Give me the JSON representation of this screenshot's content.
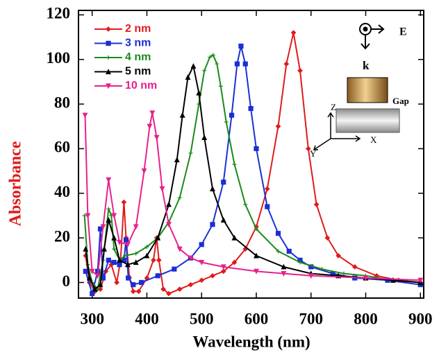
{
  "chart_data": {
    "type": "line",
    "x_label": "Wavelength (nm)",
    "y_label": "Absorbance",
    "xlim": [
      275,
      906
    ],
    "ylim": [
      -7,
      122
    ],
    "xticks": [
      300,
      400,
      500,
      600,
      700,
      800,
      900
    ],
    "yticks": [
      0,
      20,
      40,
      60,
      80,
      100,
      120
    ],
    "legend": "upper-left",
    "series": [
      {
        "name": "2 nm",
        "color": "#e01b1b",
        "marker": "diamond",
        "x": [
          288,
          295,
          305,
          315,
          325,
          335,
          345,
          352,
          358,
          362,
          368,
          375,
          385,
          400,
          412,
          418,
          422,
          430,
          440,
          460,
          480,
          500,
          520,
          540,
          560,
          580,
          600,
          620,
          640,
          655,
          668,
          680,
          695,
          710,
          730,
          750,
          780,
          820,
          860,
          900
        ],
        "values": [
          12,
          0,
          -4,
          -3,
          5,
          8,
          0,
          10,
          36,
          20,
          2,
          -4,
          -4,
          2,
          10,
          20,
          10,
          -3,
          -5,
          -3,
          -1,
          1,
          3,
          5,
          9,
          15,
          25,
          42,
          70,
          98,
          112,
          95,
          60,
          35,
          20,
          12,
          7,
          3,
          1,
          0
        ]
      },
      {
        "name": "3 nm",
        "color": "#1a2fd6",
        "marker": "square",
        "x": [
          288,
          300,
          310,
          315,
          320,
          330,
          340,
          350,
          358,
          362,
          366,
          375,
          390,
          420,
          450,
          480,
          500,
          520,
          540,
          555,
          565,
          572,
          580,
          590,
          600,
          620,
          640,
          660,
          680,
          700,
          740,
          780,
          840,
          900
        ],
        "values": [
          5,
          -5,
          5,
          24,
          2,
          10,
          9,
          8,
          10,
          19,
          2,
          -1,
          0,
          3,
          6,
          11,
          17,
          26,
          45,
          75,
          98,
          106,
          98,
          78,
          60,
          34,
          22,
          14,
          10,
          7,
          4,
          2,
          1,
          -1
        ]
      },
      {
        "name": "4 nm",
        "color": "#1a8a1a",
        "marker": "plus",
        "x": [
          286,
          292,
          300,
          310,
          320,
          330,
          335,
          340,
          350,
          360,
          380,
          400,
          420,
          440,
          460,
          480,
          495,
          505,
          515,
          521,
          528,
          535,
          545,
          560,
          580,
          600,
          640,
          680,
          720,
          760,
          800,
          850,
          900
        ],
        "values": [
          30,
          8,
          0,
          -3,
          10,
          33,
          30,
          15,
          10,
          12,
          13,
          16,
          20,
          27,
          38,
          58,
          80,
          95,
          101,
          102,
          98,
          88,
          72,
          53,
          35,
          24,
          14,
          9,
          6,
          4,
          3,
          1,
          0
        ]
      },
      {
        "name": "5 nm",
        "color": "#000000",
        "marker": "triangle",
        "x": [
          288,
          295,
          305,
          315,
          322,
          330,
          340,
          350,
          365,
          380,
          400,
          420,
          440,
          455,
          465,
          475,
          485,
          495,
          505,
          520,
          540,
          560,
          600,
          650,
          700,
          750,
          800,
          850,
          900
        ],
        "values": [
          15,
          2,
          -3,
          -1,
          15,
          28,
          20,
          10,
          8,
          9,
          12,
          20,
          35,
          55,
          75,
          92,
          97,
          85,
          65,
          42,
          28,
          20,
          12,
          7,
          4,
          3,
          2,
          1,
          0
        ]
      },
      {
        "name": "10 nm",
        "color": "#e8208c",
        "marker": "down-triangle",
        "x": [
          287,
          292,
          300,
          310,
          320,
          330,
          340,
          350,
          365,
          380,
          395,
          405,
          410,
          418,
          428,
          440,
          460,
          480,
          500,
          540,
          600,
          650,
          700,
          800,
          900
        ],
        "values": [
          75,
          30,
          5,
          3,
          25,
          46,
          30,
          18,
          17,
          25,
          50,
          70,
          76,
          65,
          42,
          26,
          15,
          11,
          9,
          7,
          5,
          4,
          3,
          2,
          1
        ]
      }
    ],
    "annotations": [
      "E",
      "k",
      "Gap",
      "Z",
      "X",
      "Y"
    ]
  }
}
